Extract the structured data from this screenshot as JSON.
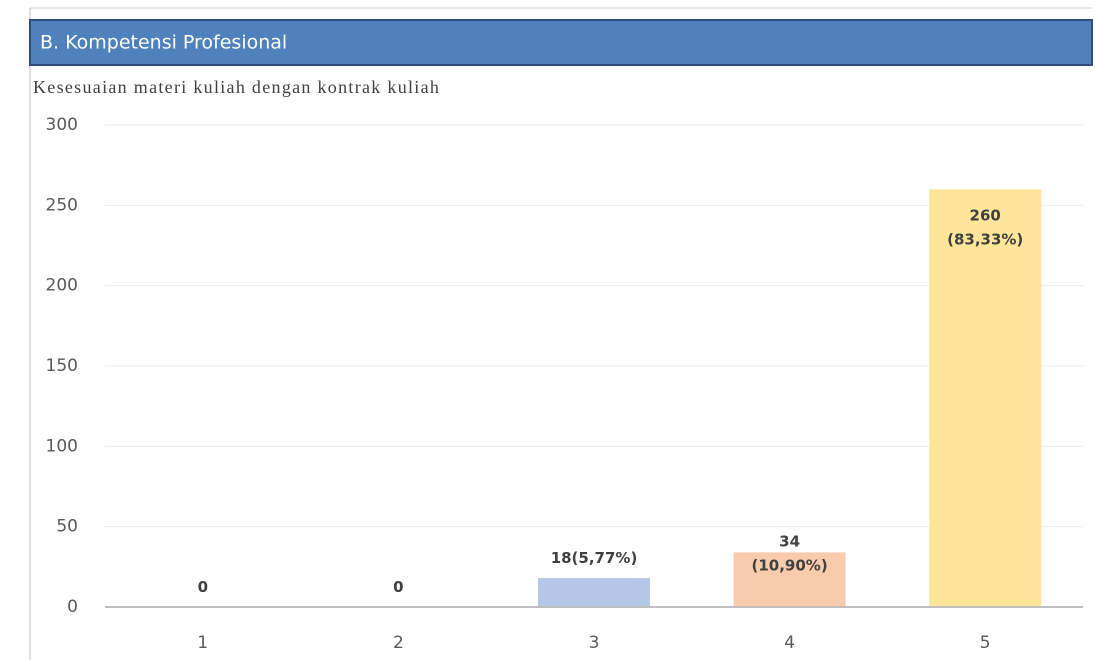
{
  "header": {
    "title": "B. Kompetensi Profesional"
  },
  "chart_data": {
    "type": "bar",
    "title": "Kesesuaian materi kuliah dengan kontrak kuliah",
    "categories": [
      "1",
      "2",
      "3",
      "4",
      "5"
    ],
    "values": [
      0,
      0,
      18,
      34,
      260
    ],
    "value_labels": [
      [
        "0"
      ],
      [
        "0"
      ],
      [
        "18(5,77%)"
      ],
      [
        "34",
        "(10,90%)"
      ],
      [
        "260",
        "(83,33%)"
      ]
    ],
    "colors": [
      "#b4c7e7",
      "#b4c7e7",
      "#b4c7e7",
      "#f8cbad",
      "#ffe699"
    ],
    "ylim": [
      0,
      300
    ],
    "yticks": [
      0,
      50,
      100,
      150,
      200,
      250,
      300
    ],
    "grid": true
  }
}
